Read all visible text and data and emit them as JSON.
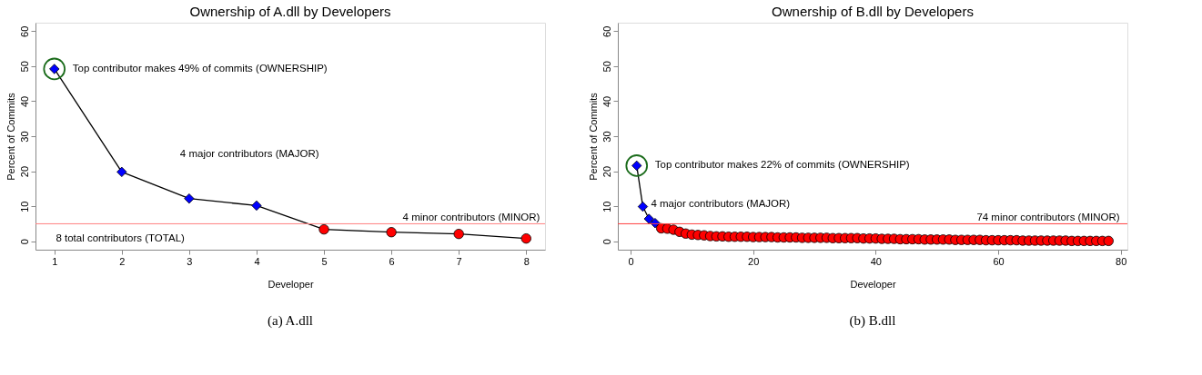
{
  "chart_data": [
    {
      "type": "line",
      "title": "Ownership of A.dll by Developers",
      "xlabel": "Developer",
      "ylabel": "Percent of Commits",
      "xlim": [
        0.72,
        8.28
      ],
      "xticks": [
        1,
        2,
        3,
        4,
        5,
        6,
        7,
        8
      ],
      "ylim": [
        -2.4,
        62.4
      ],
      "yticks": [
        0,
        10,
        20,
        30,
        40,
        50,
        60
      ],
      "grid": false,
      "series": [
        {
          "type": "line",
          "color": "#000000",
          "marker": "none",
          "x": [
            1,
            2,
            3,
            4,
            5,
            6,
            7,
            8
          ],
          "values": [
            49.2,
            19.8,
            12.2,
            10.2,
            3.4,
            2.6,
            2.1,
            0.8
          ]
        },
        {
          "type": "scatter",
          "color": "#0000ff",
          "marker": "diamond",
          "x": [
            1,
            2,
            3,
            4
          ],
          "values": [
            49.2,
            19.8,
            12.2,
            10.2
          ]
        },
        {
          "type": "scatter",
          "color": "#ff0000",
          "marker": "circle",
          "x": [
            5,
            6,
            7,
            8
          ],
          "values": [
            3.4,
            2.6,
            2.1,
            0.8
          ]
        }
      ],
      "ref_lines": [
        {
          "axis": "y",
          "value": 5,
          "color": "#ff8080"
        }
      ],
      "annotations": [
        {
          "text": "Top contributor makes 49% of commits (OWNERSHIP)",
          "x": 1,
          "y": 49.2
        },
        "4 major contributors (MAJOR)",
        "4 minor contributors (MINOR)",
        "8 total contributors (TOTAL)",
        "(a) A.dll"
      ]
    },
    {
      "type": "line",
      "title": "Ownership of B.dll by Developers",
      "xlabel": "Developer",
      "ylabel": "Percent of Commits",
      "xlim": [
        -2.08,
        81.08
      ],
      "xticks": [
        0,
        20,
        40,
        60,
        80
      ],
      "ylim": [
        -2.4,
        62.4
      ],
      "yticks": [
        0,
        10,
        20,
        30,
        40,
        50,
        60
      ],
      "grid": false,
      "series": [
        {
          "type": "line",
          "color": "#000000",
          "marker": "none",
          "x": [
            1,
            2,
            3,
            4,
            5
          ],
          "values": [
            21.6,
            9.9,
            6.4,
            5.2,
            3.7
          ]
        },
        {
          "type": "scatter",
          "color": "#0000ff",
          "marker": "diamond",
          "x": [
            1,
            2,
            3,
            4
          ],
          "values": [
            21.6,
            9.9,
            6.4,
            5.2
          ]
        },
        {
          "type": "scatter",
          "color": "#ff0000",
          "marker": "circle",
          "x": [
            5,
            6,
            7,
            8,
            9,
            10,
            11,
            12,
            13,
            14,
            15,
            16,
            17,
            18,
            19,
            20,
            21,
            22,
            23,
            24,
            25,
            26,
            27,
            28,
            29,
            30,
            31,
            32,
            33,
            34,
            35,
            36,
            37,
            38,
            39,
            40,
            41,
            42,
            43,
            44,
            45,
            46,
            47,
            48,
            49,
            50,
            51,
            52,
            53,
            54,
            55,
            56,
            57,
            58,
            59,
            60,
            61,
            62,
            63,
            64,
            65,
            66,
            67,
            68,
            69,
            70,
            71,
            72,
            73,
            74,
            75,
            76,
            77,
            78
          ],
          "values": [
            3.7,
            3.6,
            3.3,
            2.7,
            2.2,
            1.9,
            1.8,
            1.7,
            1.5,
            1.4,
            1.4,
            1.3,
            1.3,
            1.3,
            1.3,
            1.2,
            1.2,
            1.2,
            1.2,
            1.1,
            1.1,
            1.1,
            1.1,
            1.0,
            1.0,
            1.0,
            1.0,
            1.0,
            0.9,
            0.9,
            0.9,
            0.9,
            0.9,
            0.8,
            0.8,
            0.8,
            0.7,
            0.7,
            0.7,
            0.6,
            0.6,
            0.6,
            0.6,
            0.5,
            0.5,
            0.5,
            0.5,
            0.5,
            0.4,
            0.4,
            0.4,
            0.4,
            0.4,
            0.3,
            0.3,
            0.3,
            0.3,
            0.3,
            0.3,
            0.2,
            0.2,
            0.2,
            0.2,
            0.2,
            0.2,
            0.2,
            0.2,
            0.1,
            0.1,
            0.1,
            0.1,
            0.1,
            0.1,
            0.1
          ]
        }
      ],
      "ref_lines": [
        {
          "axis": "y",
          "value": 5,
          "color": "#ff4040"
        }
      ],
      "annotations": [
        {
          "text": "Top contributor makes 22% of commits (OWNERSHIP)",
          "x": 1,
          "y": 21.6
        },
        "4 major contributors (MAJOR)",
        "74 minor contributors (MINOR)",
        "(b) B.dll"
      ]
    }
  ]
}
